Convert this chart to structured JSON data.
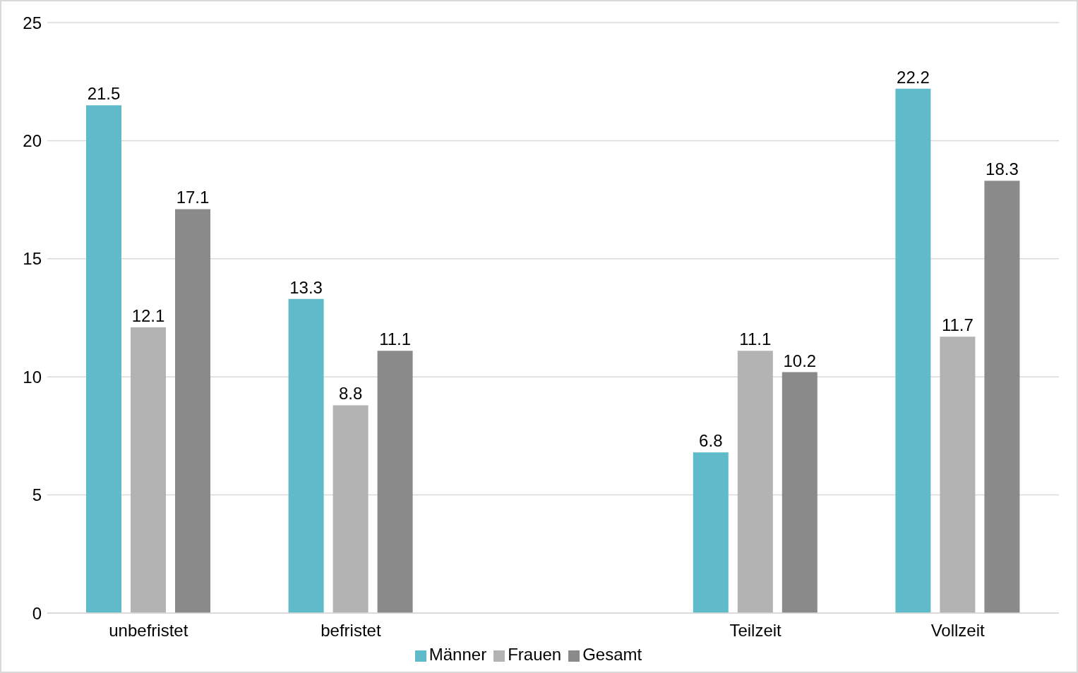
{
  "chart_data": {
    "type": "bar",
    "categories": [
      "unbefristet",
      "befristet",
      null,
      "Teilzeit",
      "Vollzeit"
    ],
    "series": [
      {
        "name": "Männer",
        "color": "#5fbbc9",
        "values": [
          21.5,
          13.3,
          null,
          6.8,
          22.2
        ]
      },
      {
        "name": "Frauen",
        "color": "#b3b3b3",
        "values": [
          12.1,
          8.8,
          null,
          11.1,
          11.7
        ]
      },
      {
        "name": "Gesamt",
        "color": "#8a8a8a",
        "values": [
          17.1,
          11.1,
          null,
          10.2,
          18.3
        ]
      }
    ],
    "ylim": [
      0,
      25
    ],
    "yticks": [
      0,
      5,
      10,
      15,
      20,
      25
    ],
    "grid": "y",
    "legend": "bottom",
    "data_labels": true
  }
}
